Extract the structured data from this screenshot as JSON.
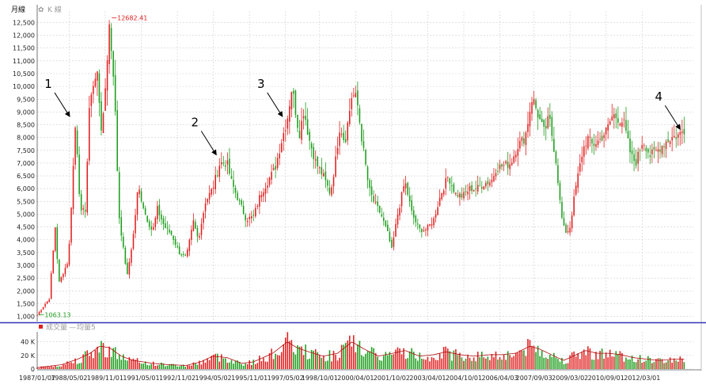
{
  "header": {
    "period_label": "月線",
    "toggle_icon": "gear-icon",
    "toggle_label": "K 線"
  },
  "volume_legend": {
    "volume_label": "成交量",
    "ma_label": "均量5"
  },
  "colors": {
    "up": "#e02020",
    "down": "#1e9e1e",
    "divider": "#3333bb",
    "ma": "#b01010"
  },
  "chart_data": [
    {
      "type": "candlestick",
      "ylim": [
        800,
        12700
      ],
      "y_ticks": [
        1000,
        1500,
        2000,
        2500,
        3000,
        3500,
        4000,
        4500,
        5000,
        5500,
        6000,
        6500,
        7000,
        7500,
        8000,
        8500,
        9000,
        9500,
        10000,
        10500,
        11000,
        11500,
        12000,
        12500
      ],
      "y_tick_labels": [
        "1,000",
        "1,500",
        "2,000",
        "2,500",
        "3,000",
        "3,500",
        "4,000",
        "4,500",
        "5,000",
        "5,500",
        "6,000",
        "6,500",
        "7,000",
        "7,500",
        "8,000",
        "8,500",
        "9,000",
        "9,500",
        "10,000",
        "10,500",
        "11,000",
        "11,500",
        "12,000",
        "12,500"
      ],
      "x_range": [
        1987.0,
        2014.3
      ],
      "x_ticks": [
        {
          "t": 1987.0,
          "label": "1987/01/07"
        },
        {
          "t": 1988.33,
          "label": "1988/05/02"
        },
        {
          "t": 1989.83,
          "label": "1989/11/01"
        },
        {
          "t": 1991.33,
          "label": "1991/05/01"
        },
        {
          "t": 1992.83,
          "label": "1992/11/02"
        },
        {
          "t": 1994.33,
          "label": "1994/05/02"
        },
        {
          "t": 1995.83,
          "label": "1995/11/01"
        },
        {
          "t": 1997.33,
          "label": "1997/05/02"
        },
        {
          "t": 1998.75,
          "label": "1998/10/01"
        },
        {
          "t": 2000.25,
          "label": "2000/04/01"
        },
        {
          "t": 2001.75,
          "label": "2001/10/02"
        },
        {
          "t": 2003.25,
          "label": "2003/04/01"
        },
        {
          "t": 2004.75,
          "label": "2004/10/01"
        },
        {
          "t": 2006.25,
          "label": "2006/04/03"
        },
        {
          "t": 2007.67,
          "label": "2007/09/03"
        },
        {
          "t": 2009.17,
          "label": "2009/03/02"
        },
        {
          "t": 2010.67,
          "label": "2010/09/01"
        },
        {
          "t": 2012.17,
          "label": "2012/03/01"
        }
      ],
      "anchors": [
        [
          1987.0,
          1063
        ],
        [
          1987.5,
          1700
        ],
        [
          1987.75,
          4500
        ],
        [
          1987.9,
          2300
        ],
        [
          1988.3,
          3200
        ],
        [
          1988.6,
          8700
        ],
        [
          1988.8,
          5000
        ],
        [
          1989.0,
          5200
        ],
        [
          1989.2,
          9700
        ],
        [
          1989.5,
          10500
        ],
        [
          1989.7,
          8000
        ],
        [
          1990.0,
          12400
        ],
        [
          1990.2,
          10200
        ],
        [
          1990.4,
          5000
        ],
        [
          1990.6,
          3500
        ],
        [
          1990.75,
          2600
        ],
        [
          1991.0,
          4200
        ],
        [
          1991.2,
          6100
        ],
        [
          1991.5,
          5000
        ],
        [
          1991.8,
          4300
        ],
        [
          1992.0,
          5200
        ],
        [
          1992.3,
          4500
        ],
        [
          1992.6,
          4200
        ],
        [
          1992.9,
          3500
        ],
        [
          1993.2,
          3300
        ],
        [
          1993.5,
          4700
        ],
        [
          1993.7,
          4000
        ],
        [
          1994.0,
          5500
        ],
        [
          1994.3,
          6000
        ],
        [
          1994.6,
          7000
        ],
        [
          1994.9,
          7000
        ],
        [
          1995.1,
          6200
        ],
        [
          1995.4,
          5500
        ],
        [
          1995.7,
          4800
        ],
        [
          1996.0,
          4900
        ],
        [
          1996.3,
          5800
        ],
        [
          1996.6,
          6300
        ],
        [
          1996.9,
          6800
        ],
        [
          1997.2,
          8000
        ],
        [
          1997.4,
          8700
        ],
        [
          1997.6,
          10000
        ],
        [
          1997.9,
          8100
        ],
        [
          1998.1,
          9100
        ],
        [
          1998.3,
          8000
        ],
        [
          1998.6,
          7000
        ],
        [
          1998.9,
          6500
        ],
        [
          1999.2,
          5800
        ],
        [
          1999.4,
          7000
        ],
        [
          1999.6,
          8500
        ],
        [
          1999.8,
          7800
        ],
        [
          2000.1,
          9700
        ],
        [
          2000.3,
          9500
        ],
        [
          2000.5,
          8000
        ],
        [
          2000.8,
          6000
        ],
        [
          2001.0,
          5500
        ],
        [
          2001.3,
          5000
        ],
        [
          2001.6,
          4200
        ],
        [
          2001.75,
          3600
        ],
        [
          2002.0,
          5000
        ],
        [
          2002.3,
          6300
        ],
        [
          2002.6,
          5000
        ],
        [
          2002.9,
          4400
        ],
        [
          2003.2,
          4400
        ],
        [
          2003.5,
          4800
        ],
        [
          2003.8,
          5800
        ],
        [
          2004.1,
          6500
        ],
        [
          2004.4,
          5800
        ],
        [
          2004.7,
          5700
        ],
        [
          2005.0,
          6000
        ],
        [
          2005.3,
          6000
        ],
        [
          2005.6,
          6200
        ],
        [
          2005.9,
          6300
        ],
        [
          2006.1,
          6800
        ],
        [
          2006.4,
          6900
        ],
        [
          2006.7,
          7000
        ],
        [
          2007.0,
          7700
        ],
        [
          2007.3,
          8000
        ],
        [
          2007.6,
          9600
        ],
        [
          2007.9,
          8700
        ],
        [
          2008.1,
          8200
        ],
        [
          2008.3,
          8800
        ],
        [
          2008.6,
          7000
        ],
        [
          2008.8,
          5000
        ],
        [
          2008.95,
          4300
        ],
        [
          2009.15,
          4400
        ],
        [
          2009.4,
          6000
        ],
        [
          2009.7,
          7500
        ],
        [
          2009.9,
          8000
        ],
        [
          2010.1,
          7700
        ],
        [
          2010.4,
          7900
        ],
        [
          2010.7,
          8300
        ],
        [
          2010.95,
          8900
        ],
        [
          2011.1,
          8800
        ],
        [
          2011.4,
          8600
        ],
        [
          2011.7,
          7300
        ],
        [
          2011.9,
          7000
        ],
        [
          2012.2,
          7900
        ],
        [
          2012.5,
          7300
        ],
        [
          2012.8,
          7500
        ],
        [
          2013.1,
          7800
        ],
        [
          2013.4,
          8000
        ],
        [
          2013.7,
          8100
        ],
        [
          2013.9,
          8300
        ]
      ],
      "marker_high": {
        "value": "12682.41",
        "t": 1990.1
      },
      "marker_low": {
        "value": "1063.13",
        "t": 1987.08
      },
      "annotations": [
        {
          "label": "1",
          "t": 1988.45,
          "value": 8700
        },
        {
          "label": "2",
          "t": 1994.55,
          "value": 7200
        },
        {
          "label": "3",
          "t": 1997.3,
          "value": 8700
        },
        {
          "label": "4",
          "t": 2013.85,
          "value": 8200
        }
      ]
    },
    {
      "type": "bar",
      "name": "volume",
      "ylim": [
        0,
        50
      ],
      "y_ticks": [
        0,
        20,
        40
      ],
      "y_tick_labels": [
        "0",
        "20 K",
        "40 K"
      ],
      "vol_anchors": [
        [
          1987.0,
          2
        ],
        [
          1988.0,
          6
        ],
        [
          1988.7,
          14
        ],
        [
          1989.2,
          22
        ],
        [
          1989.6,
          32
        ],
        [
          1990.0,
          30
        ],
        [
          1990.5,
          18
        ],
        [
          1991.0,
          12
        ],
        [
          1991.8,
          8
        ],
        [
          1992.5,
          6
        ],
        [
          1993.2,
          5
        ],
        [
          1993.8,
          10
        ],
        [
          1994.3,
          18
        ],
        [
          1994.9,
          16
        ],
        [
          1995.5,
          8
        ],
        [
          1996.0,
          10
        ],
        [
          1996.8,
          22
        ],
        [
          1997.4,
          38
        ],
        [
          1997.8,
          30
        ],
        [
          1998.3,
          24
        ],
        [
          1998.9,
          18
        ],
        [
          1999.5,
          22
        ],
        [
          2000.1,
          38
        ],
        [
          2000.6,
          28
        ],
        [
          2001.2,
          18
        ],
        [
          2001.8,
          22
        ],
        [
          2002.3,
          26
        ],
        [
          2002.9,
          18
        ],
        [
          2003.5,
          20
        ],
        [
          2004.0,
          24
        ],
        [
          2004.6,
          20
        ],
        [
          2005.2,
          18
        ],
        [
          2005.8,
          20
        ],
        [
          2006.3,
          20
        ],
        [
          2006.9,
          22
        ],
        [
          2007.5,
          32
        ],
        [
          2007.9,
          28
        ],
        [
          2008.4,
          20
        ],
        [
          2008.9,
          12
        ],
        [
          2009.3,
          18
        ],
        [
          2009.8,
          26
        ],
        [
          2010.3,
          22
        ],
        [
          2010.8,
          22
        ],
        [
          2011.3,
          20
        ],
        [
          2011.8,
          16
        ],
        [
          2012.3,
          14
        ],
        [
          2012.9,
          12
        ],
        [
          2013.5,
          14
        ],
        [
          2013.9,
          14
        ]
      ]
    }
  ]
}
